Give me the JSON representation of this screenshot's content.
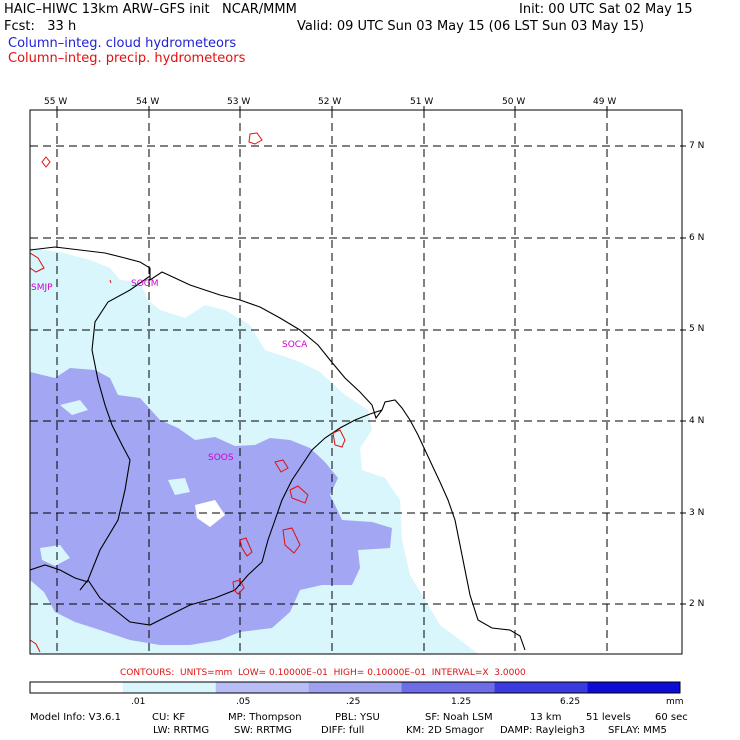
{
  "header": {
    "title": "HAIC–HIWC 13km ARW–GFS init   NCAR/MMM",
    "init": "Init: 00 UTC Sat 02 May 15",
    "fcst": "Fcst:   33 h",
    "valid": "Valid: 09 UTC Sun 03 May 15 (06 LST Sun 03 May 15)",
    "field1": "Column–integ. cloud hydrometeors",
    "field2": "Column–integ. precip. hydrometeors"
  },
  "colors": {
    "field1": "#1f1fd6",
    "field2": "#e01010",
    "station": "#d000d0",
    "shade_light": "#d8f6fb",
    "shade_medium": "#9ea0f0",
    "contour": "#e01010"
  },
  "map": {
    "lon_labels": [
      "55 W",
      "54 W",
      "53 W",
      "52 W",
      "51 W",
      "50 W",
      "49 W"
    ],
    "lat_labels": [
      "7 N",
      "6 N",
      "5 N",
      "4 N",
      "3 N",
      "2 N"
    ],
    "stations": [
      "SMJP",
      "SOGM",
      "SOCA",
      "SOOS"
    ]
  },
  "contour_info": "CONTOURS:  UNITS=mm  LOW= 0.10000E–01  HIGH= 0.10000E–01  INTERVAL=X  3.0000",
  "colorbar": {
    "labels": [
      ".01",
      ".05",
      ".25",
      "1.25",
      "6.25"
    ],
    "unit": "mm",
    "colors": [
      "#ffffff",
      "#d8f6fb",
      "#b9bdf5",
      "#9ea0f0",
      "#6d6de8",
      "#3a3ae0",
      "#0c0cd6"
    ]
  },
  "footer": {
    "line1": [
      "Model Info: V3.6.1",
      "CU: KF",
      "MP: Thompson",
      "PBL: YSU",
      "SF: Noah LSM",
      "13 km",
      "51 levels",
      "60 sec"
    ],
    "line2": [
      "LW: RRTMG",
      "SW: RRTMG",
      "DIFF: full",
      "KM: 2D Smagor",
      "DAMP: Rayleigh3",
      "SFLAY: MM5"
    ]
  }
}
